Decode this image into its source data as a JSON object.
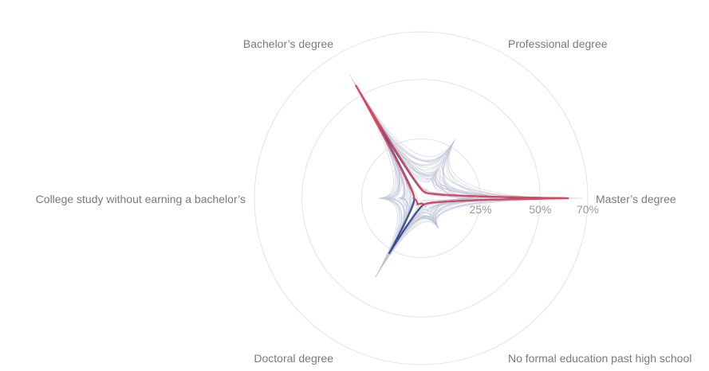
{
  "chart_data": {
    "type": "radar",
    "title": "",
    "axes": [
      "Master’s degree",
      "Professional degree",
      "Bachelor’s degree",
      "College study without earning a bachelor’s",
      "Doctoral degree",
      "No formal education past high school"
    ],
    "radial_ticks": [
      {
        "value": 25,
        "label": "25%"
      },
      {
        "value": 50,
        "label": "50%"
      },
      {
        "value": 70,
        "label": "70%"
      }
    ],
    "rmax": 70,
    "background_series_count": 30,
    "series_summary": {
      "highlight_red": [
        62,
        3,
        55,
        3,
        3,
        3
      ],
      "highlight_blue": [
        60,
        3,
        40,
        3,
        27,
        3
      ],
      "background_range": {
        "Master’s degree": [
          18,
          70
        ],
        "Professional degree": [
          2,
          30
        ],
        "Bachelor’s degree": [
          25,
          62
        ],
        "College study without earning a bachelor’s": [
          1,
          18
        ],
        "Doctoral degree": [
          15,
          40
        ],
        "No formal education past high school": [
          1,
          15
        ]
      }
    },
    "colors": {
      "highlight_red": "#d9485e",
      "highlight_blue": "#3f4f8f",
      "background_lines": "#b9bfd6",
      "grid": "#e3e3e8"
    },
    "grid": true,
    "legend": "none"
  }
}
